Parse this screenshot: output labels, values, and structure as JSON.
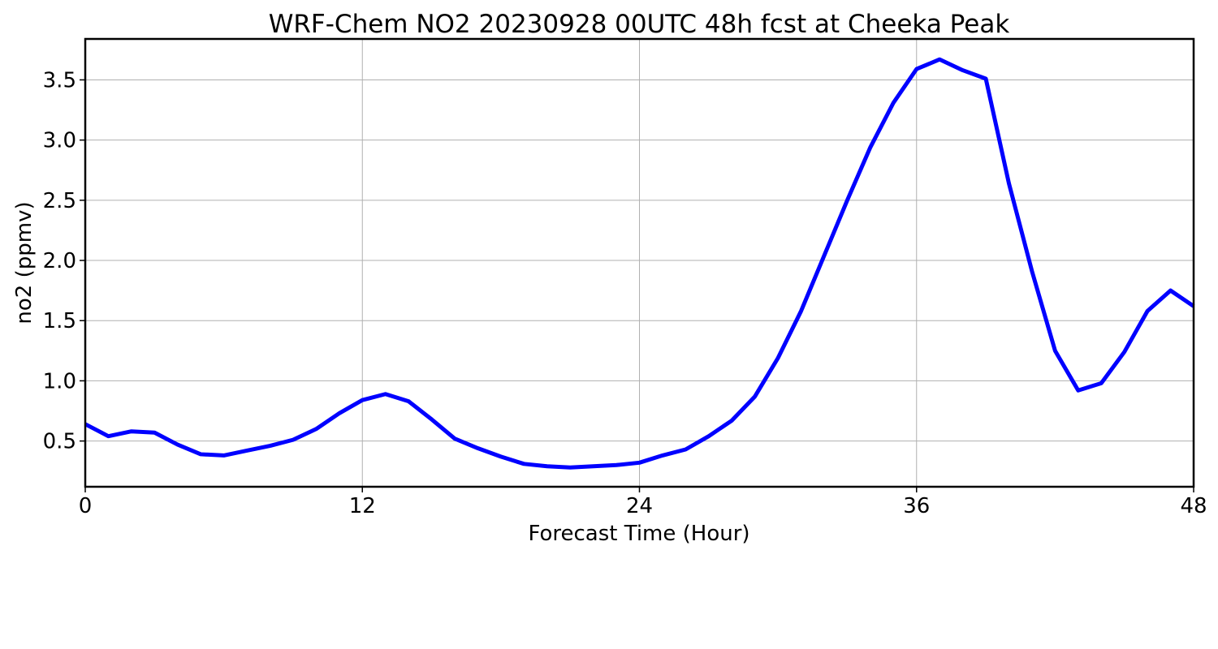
{
  "chart_data": {
    "type": "line",
    "title": "WRF-Chem NO2  20230928 00UTC 48h fcst at Cheeka Peak",
    "xlabel": "Forecast Time (Hour)",
    "ylabel": "no2  (ppmv)",
    "xlim": [
      0,
      48
    ],
    "ylim": [
      0.12,
      3.84
    ],
    "xticks": [
      0,
      12,
      24,
      36,
      48
    ],
    "yticks": [
      0.5,
      1.0,
      1.5,
      2.0,
      2.5,
      3.0,
      3.5
    ],
    "ytick_labels": [
      "0.5",
      "1.0",
      "1.5",
      "2.0",
      "2.5",
      "3.0",
      "3.5"
    ],
    "grid": true,
    "series_color": "#0000ff",
    "series": [
      {
        "x": [
          0,
          1,
          2,
          3,
          4,
          5,
          6,
          7,
          8,
          9,
          10,
          11,
          12,
          13,
          14,
          15,
          16,
          17,
          18,
          19,
          20,
          21,
          22,
          23,
          24,
          25,
          26,
          27,
          28,
          29,
          30,
          31,
          32,
          33,
          34,
          35,
          36,
          37,
          38,
          39,
          40,
          41,
          42,
          43,
          44,
          45,
          46,
          47,
          48
        ],
        "values": [
          0.64,
          0.54,
          0.58,
          0.57,
          0.47,
          0.39,
          0.38,
          0.42,
          0.46,
          0.51,
          0.6,
          0.73,
          0.84,
          0.89,
          0.83,
          0.68,
          0.52,
          0.44,
          0.37,
          0.31,
          0.29,
          0.28,
          0.29,
          0.3,
          0.32,
          0.38,
          0.43,
          0.54,
          0.67,
          0.87,
          1.19,
          1.58,
          2.04,
          2.5,
          2.94,
          3.31,
          3.59,
          3.67,
          3.58,
          3.51,
          2.64,
          1.91,
          1.25,
          0.92,
          0.98,
          1.24,
          1.58,
          1.75,
          1.62
        ]
      }
    ]
  }
}
